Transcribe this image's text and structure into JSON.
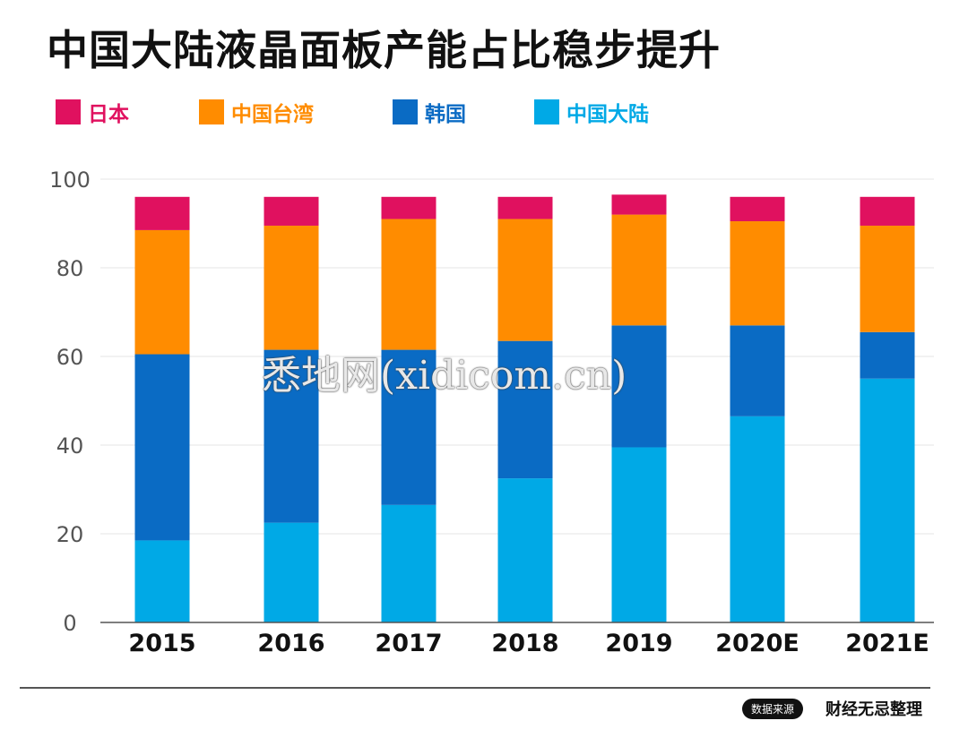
{
  "title": "中国大陆液晶面板产能占比稳步提升",
  "legend": [
    {
      "label": "日本",
      "color": "#e0115f"
    },
    {
      "label": "中国台湾",
      "color": "#ff8c00"
    },
    {
      "label": "韩国",
      "color": "#0a6bc4"
    },
    {
      "label": "中国大陆",
      "color": "#00a9e6"
    }
  ],
  "chart_data": {
    "type": "bar",
    "stacked": true,
    "categories": [
      "2015",
      "2016",
      "2017",
      "2018",
      "2019",
      "2020E",
      "2021E"
    ],
    "series": [
      {
        "name": "中国大陆",
        "color": "#00a9e6",
        "values": [
          18.5,
          22.5,
          26.5,
          32.5,
          39.5,
          46.5,
          55
        ]
      },
      {
        "name": "韩国",
        "color": "#0a6bc4",
        "values": [
          42,
          39,
          35,
          31,
          27.5,
          20.5,
          10.5
        ]
      },
      {
        "name": "中国台湾",
        "color": "#ff8c00",
        "values": [
          28,
          28,
          29.5,
          27.5,
          25,
          23.5,
          24
        ]
      },
      {
        "name": "日本",
        "color": "#e0115f",
        "values": [
          7.5,
          6.5,
          5,
          5,
          4.5,
          5.5,
          6.5
        ]
      }
    ],
    "ylim": [
      0,
      100
    ],
    "yticks": [
      0,
      20,
      40,
      60,
      80,
      100
    ],
    "grid": true
  },
  "watermark": "悉地网(xidicom.cn)",
  "footer": {
    "source_badge": "数据来源",
    "source_text": "财经无忌整理"
  }
}
